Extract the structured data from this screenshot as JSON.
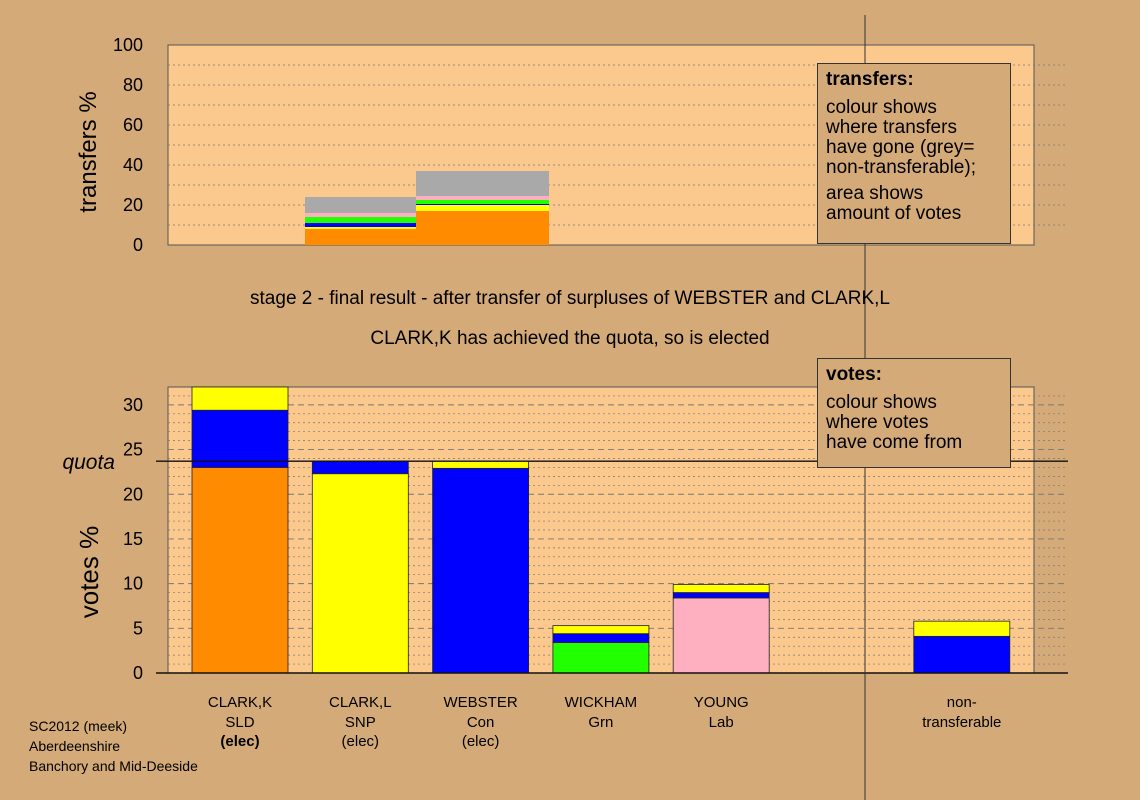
{
  "chart_data": [
    {
      "type": "bar",
      "ylabel": "transfers %",
      "ylim": [
        0,
        100
      ],
      "yticks": [
        0,
        20,
        40,
        60,
        80,
        100
      ],
      "grid": "dotted horizontal",
      "blocks": [
        {
          "source": "WEBSTER",
          "total": 24,
          "segments": [
            {
              "to": "CLARK,K",
              "color": "#ff8c00",
              "value": 8
            },
            {
              "to": "CLARK,L",
              "color": "#ffff00",
              "value": 1
            },
            {
              "to": "WEBSTER",
              "color": "#0000ff",
              "value": 2
            },
            {
              "to": "WICKHAM",
              "color": "#22ff00",
              "value": 3
            },
            {
              "to": "YOUNG",
              "color": "#ffb0c0",
              "value": 2
            },
            {
              "to": "non-transferable",
              "color": "#a9a9a9",
              "value": 8
            }
          ]
        },
        {
          "source": "CLARK,L",
          "total": 37,
          "segments": [
            {
              "to": "CLARK,K",
              "color": "#ff8c00",
              "value": 17
            },
            {
              "to": "CLARK,L",
              "color": "#ffff00",
              "value": 3
            },
            {
              "to": "WEBSTER",
              "color": "#0000ff",
              "value": 0.5
            },
            {
              "to": "WICKHAM",
              "color": "#22ff00",
              "value": 2
            },
            {
              "to": "YOUNG",
              "color": "#ffb0c0",
              "value": 2
            },
            {
              "to": "non-transferable",
              "color": "#a9a9a9",
              "value": 12.5
            }
          ]
        }
      ],
      "legend": {
        "title": "transfers:",
        "lines1": [
          "colour shows",
          "where transfers",
          "have gone (grey=",
          "non-transferable);"
        ],
        "lines2": [
          "area shows",
          "amount of votes"
        ]
      }
    },
    {
      "type": "bar",
      "stacked": true,
      "ylabel": "votes %",
      "ylim": [
        0,
        32
      ],
      "yticks": [
        0,
        5,
        10,
        15,
        20,
        25,
        30
      ],
      "quota": 23.7,
      "quota_label": "quota",
      "candidates": [
        {
          "name": "CLARK,K",
          "party": "SLD",
          "status": "(elec)",
          "status_bold": true,
          "segments": [
            {
              "color": "#ff8c00",
              "value": 23.0
            },
            {
              "color": "#0000ff",
              "value": 6.4
            },
            {
              "color": "#ffff00",
              "value": 2.6
            }
          ]
        },
        {
          "name": "CLARK,L",
          "party": "SNP",
          "status": "(elec)",
          "status_bold": false,
          "segments": [
            {
              "color": "#ffff00",
              "value": 22.3
            },
            {
              "color": "#0000ff",
              "value": 1.4
            }
          ]
        },
        {
          "name": "WEBSTER",
          "party": "Con",
          "status": "(elec)",
          "status_bold": false,
          "segments": [
            {
              "color": "#0000ff",
              "value": 22.9
            },
            {
              "color": "#ffff00",
              "value": 0.8
            }
          ]
        },
        {
          "name": "WICKHAM",
          "party": "Grn",
          "status": "",
          "status_bold": false,
          "segments": [
            {
              "color": "#22ff00",
              "value": 3.4
            },
            {
              "color": "#0000ff",
              "value": 1.0
            },
            {
              "color": "#ffff00",
              "value": 0.9
            }
          ]
        },
        {
          "name": "YOUNG",
          "party": "Lab",
          "status": "",
          "status_bold": false,
          "segments": [
            {
              "color": "#ffb0c0",
              "value": 8.4
            },
            {
              "color": "#0000ff",
              "value": 0.6
            },
            {
              "color": "#ffff00",
              "value": 0.9
            }
          ]
        },
        {
          "name": "",
          "party": "",
          "status": "",
          "status_bold": false,
          "segments": []
        },
        {
          "name": "non-",
          "party": "transferable",
          "status": "",
          "status_bold": false,
          "segments": [
            {
              "color": "#0000ff",
              "value": 4.1
            },
            {
              "color": "#ffff00",
              "value": 1.7
            }
          ]
        }
      ],
      "legend": {
        "title": "votes:",
        "lines": [
          "colour shows",
          "where votes",
          "have come from"
        ]
      }
    }
  ],
  "captions": {
    "stage": "stage 2 - final result - after transfer of surpluses of WEBSTER and CLARK,L",
    "elected": "CLARK,K has achieved the quota, so is elected"
  },
  "footer": [
    "SC2012 (meek)",
    "Aberdeenshire",
    "Banchory and Mid-Deeside"
  ],
  "colors": {
    "background": "#d4aa78",
    "plot_bg": "#fbc98d"
  }
}
